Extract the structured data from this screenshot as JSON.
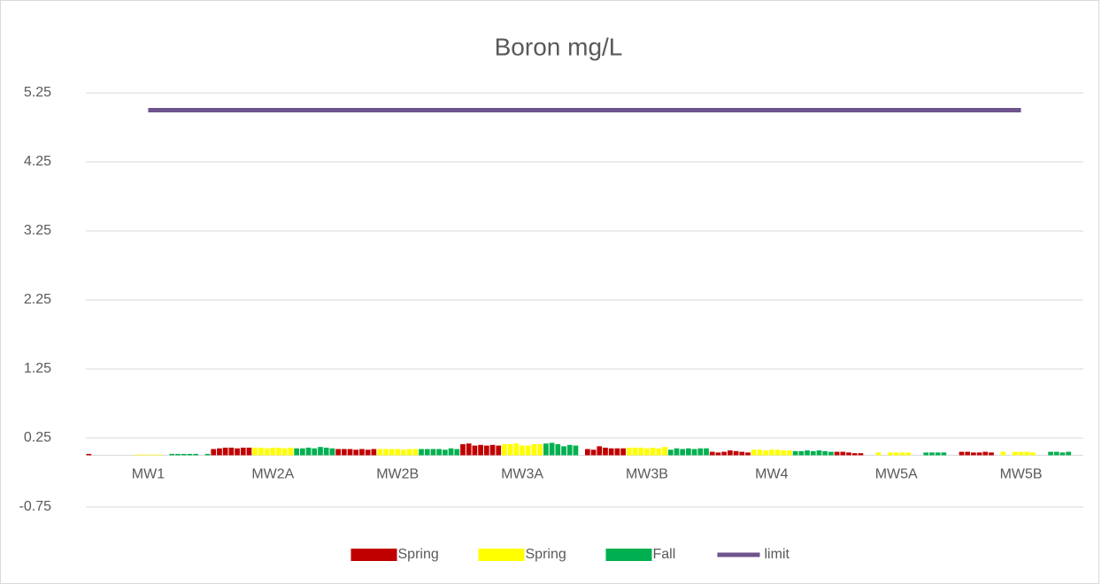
{
  "chart_data": {
    "type": "bar",
    "title": "Boron mg/L",
    "categories": [
      "MW1",
      "MW2A",
      "MW2B",
      "MW3A",
      "MW3B",
      "MW4",
      "MW5A",
      "MW5B"
    ],
    "series": [
      {
        "name": "Spring",
        "color": "#c00000",
        "values": [
          [
            0.02,
            null,
            null,
            null,
            null,
            null,
            null
          ],
          [
            0.09,
            0.1,
            0.11,
            0.11,
            0.1,
            0.11,
            0.11
          ],
          [
            0.09,
            0.09,
            0.09,
            0.08,
            0.09,
            0.08,
            0.09
          ],
          [
            0.16,
            0.17,
            0.14,
            0.15,
            0.14,
            0.15,
            0.14
          ],
          [
            0.09,
            0.08,
            0.13,
            0.11,
            0.1,
            0.1,
            0.1
          ],
          [
            0.05,
            0.04,
            0.05,
            0.07,
            0.06,
            0.05,
            0.04
          ],
          [
            0.05,
            0.05,
            0.04,
            0.03,
            0.03,
            null,
            null
          ],
          [
            0.05,
            0.05,
            0.04,
            0.04,
            0.05,
            0.04,
            null
          ]
        ]
      },
      {
        "name": "Spring",
        "color": "#ffff00",
        "values": [
          [
            null,
            0.01,
            0.01,
            0.01,
            0.01,
            0.01,
            null
          ],
          [
            0.11,
            0.11,
            0.1,
            0.11,
            0.11,
            0.1,
            0.11
          ],
          [
            0.09,
            0.09,
            0.09,
            0.09,
            0.08,
            0.09,
            0.09
          ],
          [
            0.16,
            0.16,
            0.17,
            0.14,
            0.14,
            0.16,
            0.16
          ],
          [
            0.11,
            0.11,
            0.11,
            0.1,
            0.11,
            0.1,
            0.12
          ],
          [
            0.08,
            0.08,
            0.07,
            0.08,
            0.08,
            0.07,
            0.07
          ],
          [
            0.04,
            null,
            0.04,
            0.04,
            0.04,
            0.04,
            null
          ],
          [
            0.05,
            null,
            0.05,
            0.05,
            0.05,
            0.04,
            null
          ]
        ]
      },
      {
        "name": "Fall",
        "color": "#00b050",
        "values": [
          [
            0.02,
            0.02,
            0.02,
            0.02,
            0.02,
            null,
            0.02
          ],
          [
            0.1,
            0.1,
            0.11,
            0.1,
            0.12,
            0.11,
            0.1
          ],
          [
            0.09,
            0.09,
            0.09,
            0.09,
            0.08,
            0.1,
            0.09
          ],
          [
            0.17,
            0.18,
            0.16,
            0.13,
            0.15,
            0.14,
            null
          ],
          [
            0.08,
            0.1,
            0.09,
            0.1,
            0.09,
            0.1,
            0.1
          ],
          [
            0.06,
            0.06,
            0.07,
            0.06,
            0.07,
            0.06,
            0.05
          ],
          [
            null,
            0.04,
            0.04,
            0.04,
            0.04,
            null,
            null
          ],
          [
            null,
            0.05,
            0.05,
            0.04,
            0.05,
            null,
            null
          ]
        ]
      },
      {
        "name": "limit",
        "color": "#6e548d",
        "type": "line",
        "values": [
          5,
          5,
          5,
          5,
          5,
          5,
          5,
          5
        ]
      }
    ],
    "ylim": [
      -0.75,
      5.25
    ],
    "yticks": [
      -0.75,
      0.25,
      1.25,
      2.25,
      3.25,
      4.25,
      5.25
    ],
    "grid": true,
    "legend": "bottom"
  }
}
